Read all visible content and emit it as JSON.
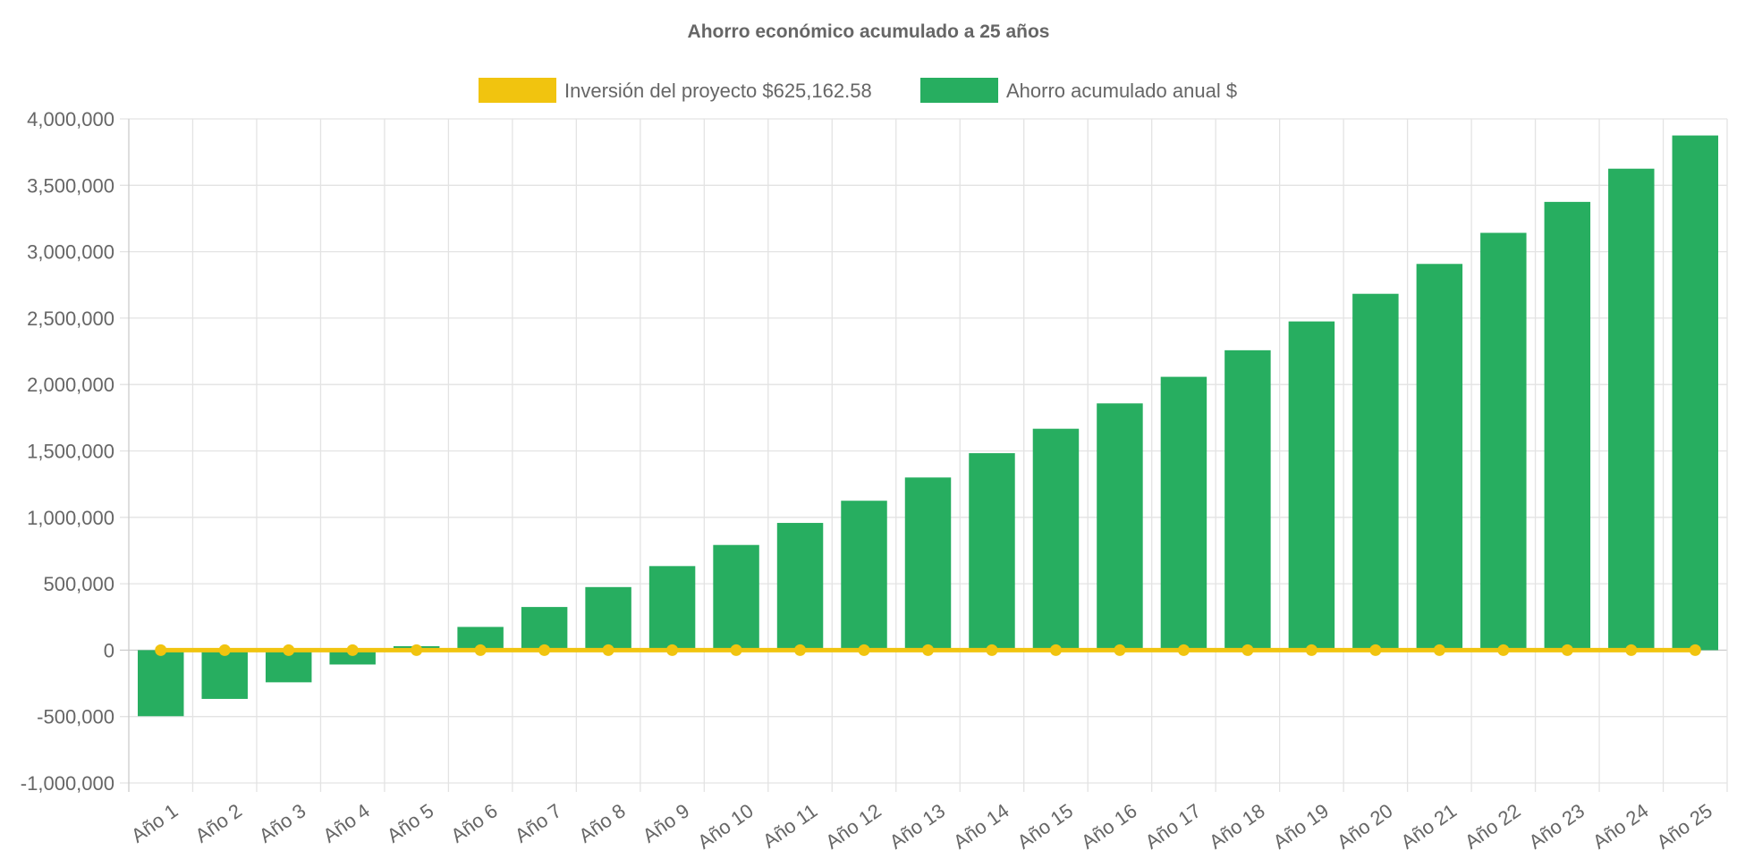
{
  "chart_data": {
    "type": "bar",
    "title": "Ahorro económico acumulado a 25 años",
    "xlabel": "",
    "ylabel": "",
    "ylim": [
      -1000000,
      4000000
    ],
    "y_ticks": [
      4000000,
      3500000,
      3000000,
      2500000,
      2000000,
      1500000,
      1000000,
      500000,
      0,
      -500000,
      -1000000
    ],
    "y_tick_labels": [
      "4,000,000",
      "3,500,000",
      "3,000,000",
      "2,500,000",
      "2,000,000",
      "1,500,000",
      "1,000,000",
      "500,000",
      "0",
      "-500,000",
      "-1,000,000"
    ],
    "grid": true,
    "legend_position": "top-center",
    "categories": [
      "Año 1",
      "Año 2",
      "Año 3",
      "Año 4",
      "Año 5",
      "Año 6",
      "Año 7",
      "Año 8",
      "Año 9",
      "Año 10",
      "Año 11",
      "Año 12",
      "Año 13",
      "Año 14",
      "Año 15",
      "Año 16",
      "Año 17",
      "Año 18",
      "Año 19",
      "Año 20",
      "Año 21",
      "Año 22",
      "Año 23",
      "Año 24",
      "Año 25"
    ],
    "series": [
      {
        "name": "Inversión del proyecto $625,162.58",
        "type": "line",
        "color": "#F1C40F",
        "values": [
          0,
          0,
          0,
          0,
          0,
          0,
          0,
          0,
          0,
          0,
          0,
          0,
          0,
          0,
          0,
          0,
          0,
          0,
          0,
          0,
          0,
          0,
          0,
          0,
          0
        ]
      },
      {
        "name": "Ahorro acumulado anual $",
        "type": "bar",
        "color": "#27AE60",
        "values": [
          -497000,
          -367000,
          -242000,
          -108000,
          30000,
          175000,
          325000,
          475000,
          633000,
          792000,
          958000,
          1125000,
          1300000,
          1483000,
          1667000,
          1858000,
          2058000,
          2258000,
          2475000,
          2683000,
          2908000,
          3142000,
          3375000,
          3625000,
          3875000
        ]
      }
    ]
  }
}
